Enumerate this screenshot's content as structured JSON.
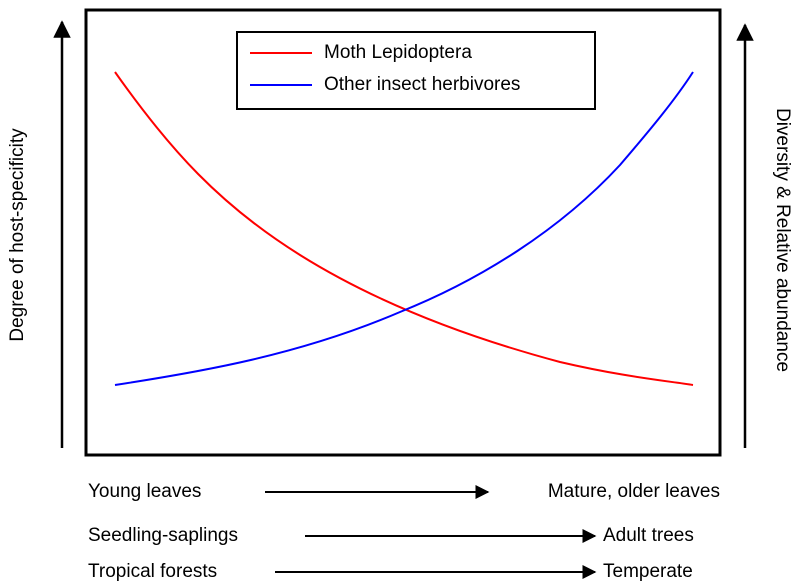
{
  "legend": {
    "entries": [
      "Moth Lepidoptera",
      "Other insect herbivores"
    ]
  },
  "left_axis_label": "Degree of host-specificity",
  "right_axis_label": "Diversity & Relative abundance",
  "gradients": [
    {
      "start": "Young leaves",
      "end": "Mature, older leaves"
    },
    {
      "start": "Seedling-saplings",
      "end": "Adult trees"
    },
    {
      "start": "Tropical forests",
      "end": "Temperate"
    }
  ]
}
